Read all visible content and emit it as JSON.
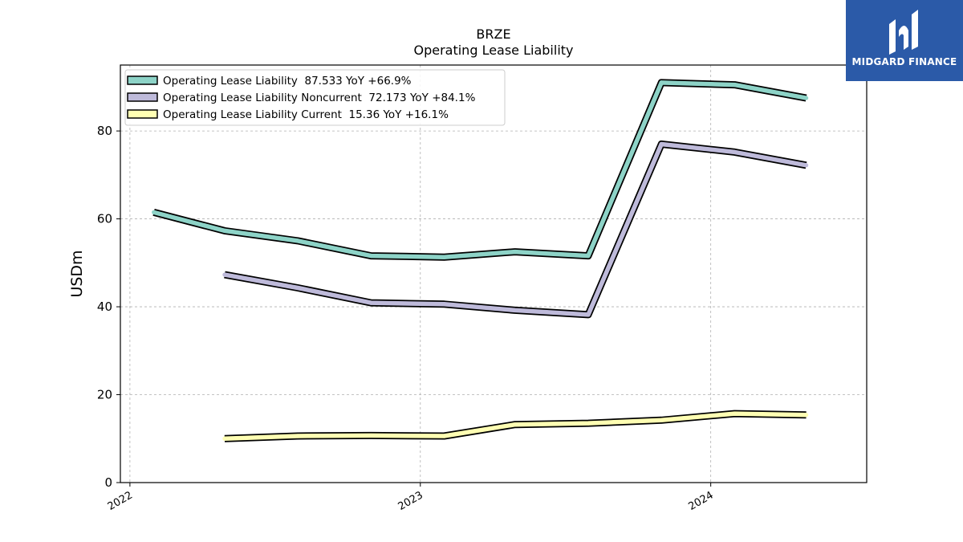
{
  "brand": {
    "name": "MIDGARD FINANCE",
    "color": "#2b5aa8"
  },
  "chart_data": {
    "type": "line",
    "title": "BRZE",
    "subtitle": "Operating Lease Liability",
    "ylabel": "USDm",
    "xlabel": "",
    "ylim": [
      0,
      95
    ],
    "xlim": [
      "2021-12-20",
      "2024-07-15"
    ],
    "yticks": [
      0,
      20,
      40,
      60,
      80
    ],
    "xticks": [
      {
        "label": "2022",
        "date": "2022-01-01"
      },
      {
        "label": "2023",
        "date": "2023-01-01"
      },
      {
        "label": "2024",
        "date": "2024-01-01"
      }
    ],
    "grid": true,
    "legend_position": "top-left",
    "series": [
      {
        "name": "Operating Lease Liability",
        "legend": "Operating Lease Liability  87.533 YoY +66.9%",
        "color": "#8dd3c7",
        "points": [
          {
            "x": "2022-01-31",
            "y": 61.5
          },
          {
            "x": "2022-04-30",
            "y": 57.3
          },
          {
            "x": "2022-07-31",
            "y": 55.0
          },
          {
            "x": "2022-10-31",
            "y": 51.6
          },
          {
            "x": "2023-01-31",
            "y": 51.3
          },
          {
            "x": "2023-04-30",
            "y": 52.5
          },
          {
            "x": "2023-07-31",
            "y": 51.6
          },
          {
            "x": "2023-10-31",
            "y": 91.0
          },
          {
            "x": "2024-01-31",
            "y": 90.5
          },
          {
            "x": "2024-04-30",
            "y": 87.5
          }
        ]
      },
      {
        "name": "Operating Lease Liability Noncurrent",
        "legend": "Operating Lease Liability Noncurrent  72.173 YoY +84.1%",
        "color": "#bebada",
        "points": [
          {
            "x": "2022-04-30",
            "y": 47.3
          },
          {
            "x": "2022-07-31",
            "y": 44.3
          },
          {
            "x": "2022-10-31",
            "y": 40.9
          },
          {
            "x": "2023-01-31",
            "y": 40.6
          },
          {
            "x": "2023-04-30",
            "y": 39.2
          },
          {
            "x": "2023-07-31",
            "y": 38.2
          },
          {
            "x": "2023-10-31",
            "y": 77.0
          },
          {
            "x": "2024-01-31",
            "y": 75.2
          },
          {
            "x": "2024-04-30",
            "y": 72.2
          }
        ]
      },
      {
        "name": "Operating Lease Liability Current",
        "legend": "Operating Lease Liability Current  15.36 YoY +16.1%",
        "color": "#ffffb3",
        "points": [
          {
            "x": "2022-04-30",
            "y": 10.0
          },
          {
            "x": "2022-07-31",
            "y": 10.6
          },
          {
            "x": "2022-10-31",
            "y": 10.7
          },
          {
            "x": "2023-01-31",
            "y": 10.6
          },
          {
            "x": "2023-04-30",
            "y": 13.2
          },
          {
            "x": "2023-07-31",
            "y": 13.5
          },
          {
            "x": "2023-10-31",
            "y": 14.2
          },
          {
            "x": "2024-01-31",
            "y": 15.7
          },
          {
            "x": "2024-04-30",
            "y": 15.4
          }
        ]
      }
    ]
  }
}
